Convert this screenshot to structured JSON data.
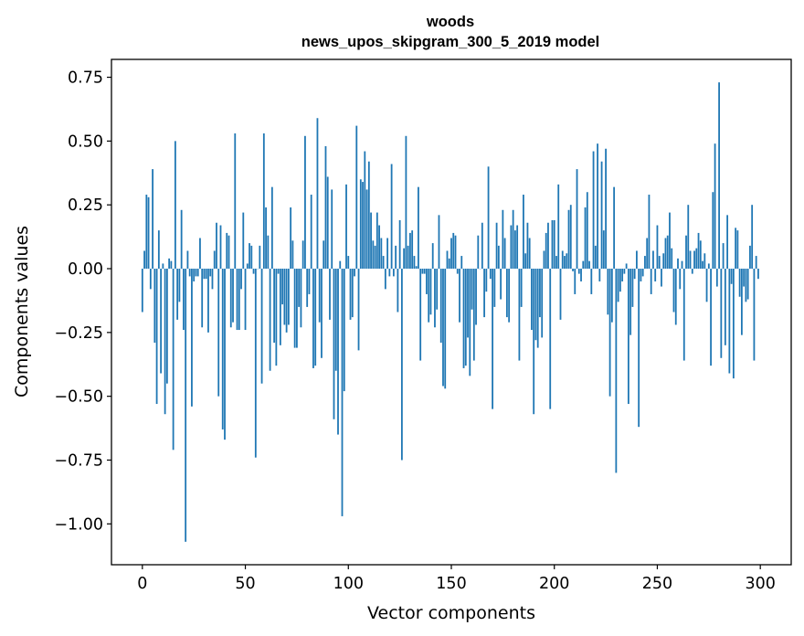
{
  "chart_data": {
    "type": "bar",
    "title_line1": "woods",
    "title_line2": "news_upos_skipgram_300_5_2019 model",
    "xlabel": "Vector components",
    "ylabel": "Components values",
    "xlim": [
      -15,
      315
    ],
    "ylim": [
      -1.16,
      0.82
    ],
    "xticks": [
      0,
      50,
      100,
      150,
      200,
      250,
      300
    ],
    "xtick_labels": [
      "0",
      "50",
      "100",
      "150",
      "200",
      "250",
      "300"
    ],
    "yticks": [
      0.75,
      0.5,
      0.25,
      0.0,
      -0.25,
      -0.5,
      -0.75,
      -1.0
    ],
    "ytick_labels": [
      "0.75",
      "0.50",
      "0.25",
      "0.00",
      "−0.25",
      "−0.50",
      "−0.75",
      "−1.00"
    ],
    "bar_color": "#1f77b4",
    "values": [
      -0.17,
      0.07,
      0.29,
      0.28,
      -0.08,
      0.39,
      -0.29,
      -0.53,
      0.15,
      -0.41,
      0.02,
      -0.57,
      -0.45,
      0.04,
      0.03,
      -0.71,
      0.5,
      -0.2,
      -0.13,
      0.23,
      -0.24,
      -1.07,
      0.07,
      -0.03,
      -0.54,
      -0.05,
      -0.03,
      -0.03,
      0.12,
      -0.23,
      -0.04,
      -0.04,
      -0.25,
      -0.03,
      -0.08,
      0.07,
      0.18,
      -0.5,
      0.17,
      -0.63,
      -0.67,
      0.14,
      0.13,
      -0.23,
      -0.21,
      0.53,
      -0.24,
      -0.24,
      -0.08,
      0.22,
      -0.24,
      0.02,
      0.1,
      0.09,
      -0.02,
      -0.74,
      0.0,
      0.09,
      -0.45,
      0.53,
      0.24,
      0.13,
      -0.4,
      0.32,
      -0.29,
      -0.38,
      -0.02,
      -0.3,
      -0.14,
      -0.22,
      -0.25,
      -0.22,
      0.24,
      0.11,
      -0.31,
      -0.31,
      -0.15,
      -0.23,
      0.11,
      0.52,
      -0.15,
      -0.1,
      0.29,
      -0.39,
      -0.38,
      0.59,
      -0.21,
      -0.35,
      0.11,
      0.48,
      0.36,
      -0.2,
      0.31,
      -0.59,
      -0.4,
      -0.65,
      0.03,
      -0.97,
      -0.48,
      0.33,
      0.05,
      -0.2,
      -0.19,
      -0.03,
      0.56,
      -0.32,
      0.35,
      0.34,
      0.46,
      0.31,
      0.42,
      0.22,
      0.11,
      0.09,
      0.22,
      0.17,
      0.12,
      0.05,
      -0.08,
      0.12,
      -0.03,
      0.41,
      -0.03,
      0.09,
      -0.17,
      0.19,
      -0.75,
      0.08,
      0.52,
      0.09,
      0.14,
      0.15,
      0.05,
      0.01,
      0.32,
      -0.36,
      -0.02,
      -0.02,
      -0.1,
      -0.21,
      -0.18,
      0.1,
      -0.23,
      -0.16,
      0.21,
      -0.29,
      -0.46,
      -0.47,
      0.07,
      0.04,
      0.12,
      0.14,
      0.13,
      -0.02,
      -0.21,
      0.05,
      -0.39,
      -0.38,
      -0.27,
      -0.42,
      -0.16,
      -0.36,
      -0.22,
      0.13,
      0.0,
      0.18,
      -0.19,
      -0.09,
      0.4,
      -0.04,
      -0.55,
      -0.15,
      0.18,
      0.09,
      -0.12,
      0.23,
      0.12,
      -0.19,
      -0.21,
      0.17,
      0.23,
      0.15,
      0.17,
      -0.36,
      -0.15,
      0.29,
      0.06,
      0.18,
      0.12,
      -0.24,
      -0.57,
      -0.28,
      -0.31,
      -0.19,
      -0.27,
      0.07,
      0.14,
      0.18,
      -0.55,
      0.19,
      0.19,
      0.05,
      0.33,
      -0.2,
      0.07,
      0.05,
      0.06,
      0.23,
      0.25,
      -0.01,
      -0.1,
      0.39,
      -0.02,
      -0.05,
      0.03,
      0.24,
      0.3,
      0.03,
      -0.1,
      0.46,
      0.09,
      0.49,
      -0.05,
      0.42,
      0.15,
      0.47,
      -0.18,
      -0.5,
      -0.21,
      0.32,
      -0.8,
      -0.13,
      -0.09,
      -0.05,
      -0.02,
      0.02,
      -0.53,
      -0.26,
      -0.15,
      -0.04,
      0.07,
      -0.62,
      -0.05,
      -0.03,
      0.05,
      0.12,
      0.29,
      -0.1,
      0.07,
      -0.05,
      0.17,
      0.05,
      -0.07,
      0.06,
      0.12,
      0.13,
      0.22,
      0.08,
      -0.17,
      -0.22,
      0.04,
      -0.08,
      0.03,
      -0.36,
      0.13,
      0.25,
      0.07,
      -0.02,
      0.07,
      0.08,
      0.14,
      0.11,
      0.03,
      0.06,
      -0.13,
      0.02,
      -0.38,
      0.3,
      0.49,
      -0.07,
      0.73,
      -0.35,
      0.1,
      -0.3,
      0.21,
      -0.41,
      -0.06,
      -0.43,
      0.16,
      0.15,
      -0.11,
      -0.26,
      -0.07,
      -0.13,
      -0.12,
      0.09,
      0.25,
      -0.36,
      0.05,
      -0.04
    ]
  }
}
